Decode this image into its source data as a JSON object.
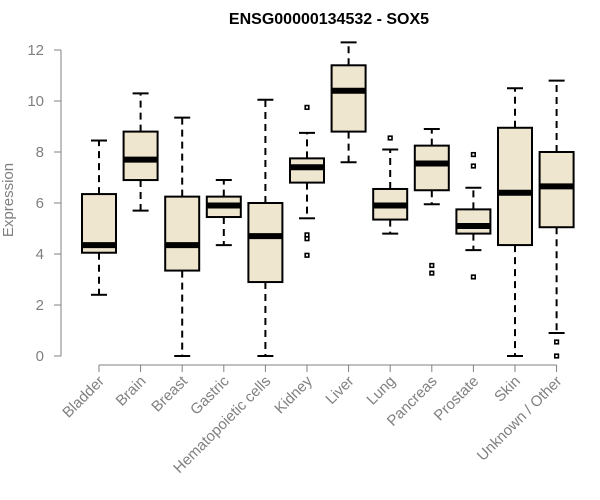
{
  "chart_data": {
    "type": "boxplot",
    "title": "ENSG00000134532 - SOX5",
    "ylabel": "Expression",
    "xlabel": "",
    "ylim": [
      0,
      12
    ],
    "yticks": [
      0,
      2,
      4,
      6,
      8,
      10,
      12
    ],
    "grid": false,
    "legend": "none",
    "box_fill": "#efe6cf",
    "categories": [
      "Bladder",
      "Brain",
      "Breast",
      "Gastric",
      "Hematopoietic cells",
      "Kidney",
      "Liver",
      "Lung",
      "Pancreas",
      "Prostate",
      "Skin",
      "Unknown / Other"
    ],
    "boxes": [
      {
        "name": "Bladder",
        "min": 2.4,
        "q1": 4.05,
        "median": 4.35,
        "q3": 6.35,
        "max": 8.45,
        "outliers": []
      },
      {
        "name": "Brain",
        "min": 5.7,
        "q1": 6.9,
        "median": 7.7,
        "q3": 8.8,
        "max": 10.3,
        "outliers": []
      },
      {
        "name": "Breast",
        "min": 0.0,
        "q1": 3.35,
        "median": 4.35,
        "q3": 6.25,
        "max": 9.35,
        "outliers": []
      },
      {
        "name": "Gastric",
        "min": 4.35,
        "q1": 5.45,
        "median": 5.9,
        "q3": 6.25,
        "max": 6.9,
        "outliers": []
      },
      {
        "name": "Hematopoietic cells",
        "min": 0.0,
        "q1": 2.9,
        "median": 4.7,
        "q3": 6.0,
        "max": 10.05,
        "outliers": []
      },
      {
        "name": "Kidney",
        "min": 5.4,
        "q1": 6.8,
        "median": 7.4,
        "q3": 7.75,
        "max": 8.75,
        "outliers": [
          9.75,
          4.75,
          4.6,
          3.95
        ]
      },
      {
        "name": "Liver",
        "min": 7.6,
        "q1": 8.8,
        "median": 10.4,
        "q3": 11.4,
        "max": 12.3,
        "outliers": []
      },
      {
        "name": "Lung",
        "min": 4.8,
        "q1": 5.35,
        "median": 5.9,
        "q3": 6.55,
        "max": 8.1,
        "outliers": [
          8.55
        ]
      },
      {
        "name": "Pancreas",
        "min": 5.95,
        "q1": 6.5,
        "median": 7.55,
        "q3": 8.25,
        "max": 8.9,
        "outliers": [
          3.55,
          3.25
        ]
      },
      {
        "name": "Prostate",
        "min": 4.15,
        "q1": 4.8,
        "median": 5.1,
        "q3": 5.75,
        "max": 6.6,
        "outliers": [
          7.9,
          7.45,
          3.1
        ]
      },
      {
        "name": "Skin",
        "min": 0.0,
        "q1": 4.35,
        "median": 6.4,
        "q3": 8.95,
        "max": 10.5,
        "outliers": []
      },
      {
        "name": "Unknown / Other",
        "min": 0.9,
        "q1": 5.05,
        "median": 6.65,
        "q3": 8.0,
        "max": 10.8,
        "outliers": [
          0.55,
          0.0
        ]
      }
    ]
  }
}
